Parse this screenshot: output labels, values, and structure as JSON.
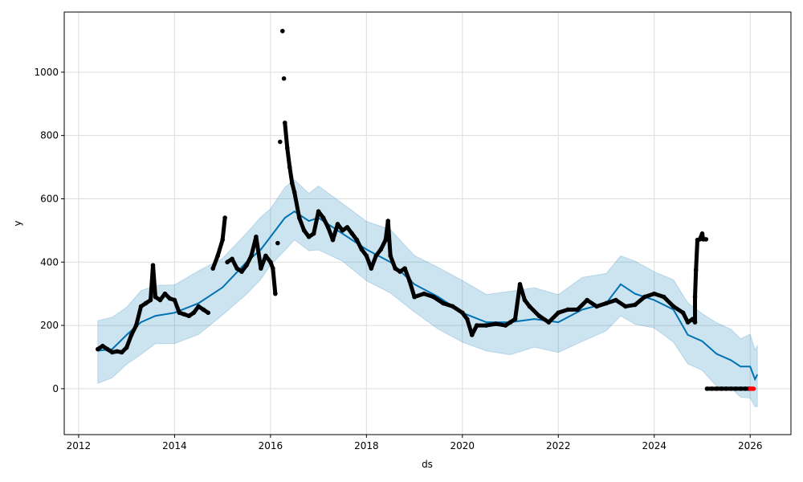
{
  "chart_data": {
    "type": "line",
    "title": "",
    "xlabel": "ds",
    "ylabel": "y",
    "xlim": [
      2011.7,
      2026.85
    ],
    "ylim": [
      -145,
      1190
    ],
    "xticks": [
      "2012",
      "2014",
      "2016",
      "2018",
      "2020",
      "2022",
      "2024",
      "2026"
    ],
    "yticks": [
      "0",
      "200",
      "400",
      "600",
      "800",
      "1000"
    ],
    "grid": true,
    "colors": {
      "forecast": "#0072B2",
      "band": "#0072B2",
      "observed": "#000000",
      "highlight": "#ff0000"
    },
    "uncertainty": 95,
    "forecast": [
      [
        2012.4,
        120
      ],
      [
        2012.7,
        125
      ],
      [
        2013.0,
        170
      ],
      [
        2013.3,
        210
      ],
      [
        2013.6,
        230
      ],
      [
        2014.0,
        240
      ],
      [
        2014.5,
        270
      ],
      [
        2015.0,
        320
      ],
      [
        2015.5,
        400
      ],
      [
        2015.8,
        440
      ],
      [
        2016.0,
        480
      ],
      [
        2016.3,
        540
      ],
      [
        2016.5,
        560
      ],
      [
        2016.8,
        530
      ],
      [
        2017.0,
        540
      ],
      [
        2017.5,
        490
      ],
      [
        2018.0,
        440
      ],
      [
        2018.5,
        400
      ],
      [
        2019.0,
        330
      ],
      [
        2019.5,
        290
      ],
      [
        2020.0,
        240
      ],
      [
        2020.5,
        210
      ],
      [
        2021.0,
        210
      ],
      [
        2021.5,
        220
      ],
      [
        2022.0,
        210
      ],
      [
        2022.5,
        250
      ],
      [
        2023.0,
        270
      ],
      [
        2023.3,
        330
      ],
      [
        2023.6,
        300
      ],
      [
        2024.0,
        280
      ],
      [
        2024.4,
        250
      ],
      [
        2024.7,
        170
      ],
      [
        2025.0,
        150
      ],
      [
        2025.3,
        110
      ],
      [
        2025.6,
        90
      ],
      [
        2025.8,
        70
      ],
      [
        2026.0,
        70
      ],
      [
        2026.1,
        30
      ],
      [
        2026.15,
        45
      ]
    ],
    "observed": [
      [
        2012.4,
        125
      ],
      [
        2012.5,
        135
      ],
      [
        2012.6,
        125
      ],
      [
        2012.7,
        115
      ],
      [
        2012.8,
        118
      ],
      [
        2012.9,
        115
      ],
      [
        2013.0,
        130
      ],
      [
        2013.1,
        170
      ],
      [
        2013.2,
        200
      ],
      [
        2013.3,
        260
      ],
      [
        2013.4,
        270
      ],
      [
        2013.5,
        280
      ],
      [
        2013.55,
        390
      ],
      [
        2013.6,
        290
      ],
      [
        2013.7,
        280
      ],
      [
        2013.8,
        300
      ],
      [
        2013.9,
        285
      ],
      [
        2014.0,
        280
      ],
      [
        2014.1,
        240
      ],
      [
        2014.2,
        235
      ],
      [
        2014.3,
        230
      ],
      [
        2014.4,
        240
      ],
      [
        2014.5,
        260
      ],
      [
        2014.6,
        250
      ],
      [
        2014.7,
        240
      ],
      [
        2014.8,
        380
      ],
      [
        2014.9,
        420
      ],
      [
        2015.0,
        470
      ],
      [
        2015.05,
        540
      ],
      [
        2015.1,
        400
      ],
      [
        2015.2,
        410
      ],
      [
        2015.3,
        380
      ],
      [
        2015.4,
        370
      ],
      [
        2015.5,
        390
      ],
      [
        2015.6,
        420
      ],
      [
        2015.7,
        480
      ],
      [
        2015.8,
        380
      ],
      [
        2015.9,
        420
      ],
      [
        2016.0,
        400
      ],
      [
        2016.05,
        380
      ],
      [
        2016.1,
        300
      ],
      [
        2016.15,
        460
      ],
      [
        2016.2,
        780
      ],
      [
        2016.25,
        1130
      ],
      [
        2016.28,
        980
      ],
      [
        2016.3,
        840
      ],
      [
        2016.35,
        760
      ],
      [
        2016.4,
        700
      ],
      [
        2016.45,
        650
      ],
      [
        2016.5,
        620
      ],
      [
        2016.6,
        540
      ],
      [
        2016.7,
        500
      ],
      [
        2016.8,
        480
      ],
      [
        2016.9,
        490
      ],
      [
        2017.0,
        560
      ],
      [
        2017.1,
        540
      ],
      [
        2017.2,
        510
      ],
      [
        2017.3,
        470
      ],
      [
        2017.4,
        520
      ],
      [
        2017.5,
        500
      ],
      [
        2017.6,
        510
      ],
      [
        2017.7,
        490
      ],
      [
        2017.8,
        470
      ],
      [
        2017.9,
        440
      ],
      [
        2018.0,
        420
      ],
      [
        2018.1,
        380
      ],
      [
        2018.2,
        420
      ],
      [
        2018.3,
        440
      ],
      [
        2018.4,
        470
      ],
      [
        2018.45,
        530
      ],
      [
        2018.5,
        420
      ],
      [
        2018.6,
        380
      ],
      [
        2018.7,
        370
      ],
      [
        2018.8,
        380
      ],
      [
        2018.9,
        340
      ],
      [
        2019.0,
        290
      ],
      [
        2019.2,
        300
      ],
      [
        2019.4,
        290
      ],
      [
        2019.6,
        270
      ],
      [
        2019.8,
        260
      ],
      [
        2020.0,
        240
      ],
      [
        2020.1,
        220
      ],
      [
        2020.2,
        170
      ],
      [
        2020.3,
        200
      ],
      [
        2020.5,
        200
      ],
      [
        2020.7,
        205
      ],
      [
        2020.9,
        200
      ],
      [
        2021.0,
        210
      ],
      [
        2021.1,
        220
      ],
      [
        2021.2,
        330
      ],
      [
        2021.3,
        280
      ],
      [
        2021.4,
        260
      ],
      [
        2021.6,
        230
      ],
      [
        2021.8,
        210
      ],
      [
        2022.0,
        240
      ],
      [
        2022.2,
        250
      ],
      [
        2022.4,
        250
      ],
      [
        2022.6,
        280
      ],
      [
        2022.8,
        260
      ],
      [
        2023.0,
        270
      ],
      [
        2023.2,
        280
      ],
      [
        2023.4,
        260
      ],
      [
        2023.6,
        265
      ],
      [
        2023.8,
        290
      ],
      [
        2024.0,
        300
      ],
      [
        2024.2,
        290
      ],
      [
        2024.4,
        260
      ],
      [
        2024.6,
        240
      ],
      [
        2024.7,
        210
      ],
      [
        2024.8,
        220
      ],
      [
        2024.85,
        210
      ],
      [
        2024.85,
        290
      ],
      [
        2024.87,
        375
      ],
      [
        2024.9,
        470
      ],
      [
        2024.95,
        472
      ],
      [
        2025.0,
        490
      ],
      [
        2025.02,
        472
      ],
      [
        2025.08,
        472
      ],
      [
        2025.1,
        0
      ],
      [
        2025.2,
        0
      ],
      [
        2025.3,
        0
      ],
      [
        2025.4,
        0
      ],
      [
        2025.5,
        0
      ],
      [
        2025.6,
        0
      ],
      [
        2025.7,
        0
      ],
      [
        2025.8,
        0
      ],
      [
        2025.9,
        0
      ],
      [
        2025.98,
        0
      ]
    ],
    "highlighted": [
      [
        2026.0,
        0
      ],
      [
        2026.04,
        0
      ],
      [
        2026.07,
        0
      ]
    ]
  }
}
